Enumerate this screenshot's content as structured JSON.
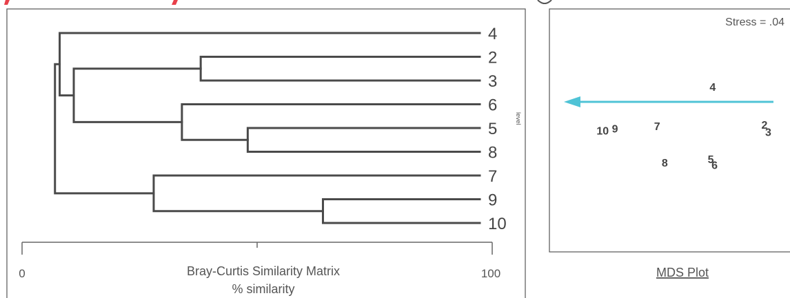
{
  "chart_data": [
    {
      "type": "dendrogram",
      "xlabel": "Bray-Curtis Similarity Matrix",
      "xlabel2": "% similarity",
      "xlim": [
        0,
        100
      ],
      "ticks": [
        {
          "value": 0,
          "label": "0"
        },
        {
          "value": 100,
          "label": "100"
        }
      ],
      "side_label": "level",
      "leaf_order": [
        "4",
        "2",
        "3",
        "6",
        "5",
        "8",
        "7",
        "9",
        "10"
      ],
      "merges": [
        {
          "id": "m23",
          "children": [
            "2",
            "3"
          ],
          "similarity": 38
        },
        {
          "id": "m58",
          "children": [
            "5",
            "8"
          ],
          "similarity": 48
        },
        {
          "id": "m910",
          "children": [
            "9",
            "10"
          ],
          "similarity": 64
        },
        {
          "id": "m6_58",
          "children": [
            "6",
            "m58"
          ],
          "similarity": 34
        },
        {
          "id": "m7_910",
          "children": [
            "7",
            "m910"
          ],
          "similarity": 28
        },
        {
          "id": "m23_658",
          "children": [
            "m23",
            "m6_58"
          ],
          "similarity": 11
        },
        {
          "id": "m4_rest",
          "children": [
            "4",
            "m23_658"
          ],
          "similarity": 8
        },
        {
          "id": "root",
          "children": [
            "m4_rest",
            "m7_910"
          ],
          "similarity": 7
        }
      ]
    },
    {
      "type": "mds",
      "title": "MDS Plot",
      "stress_label": "Stress = .04",
      "arrow_color": "#4fc3d6",
      "points": [
        {
          "label": "4",
          "x": 0.71,
          "y": 0.86
        },
        {
          "label": "2",
          "x": 0.98,
          "y": 0.54
        },
        {
          "label": "3",
          "x": 1.0,
          "y": 0.48
        },
        {
          "label": "7",
          "x": 0.42,
          "y": 0.53
        },
        {
          "label": "10",
          "x": 0.12,
          "y": 0.49
        },
        {
          "label": "9",
          "x": 0.2,
          "y": 0.51
        },
        {
          "label": "5",
          "x": 0.7,
          "y": 0.25
        },
        {
          "label": "6",
          "x": 0.72,
          "y": 0.2
        },
        {
          "label": "8",
          "x": 0.46,
          "y": 0.22
        }
      ]
    }
  ]
}
